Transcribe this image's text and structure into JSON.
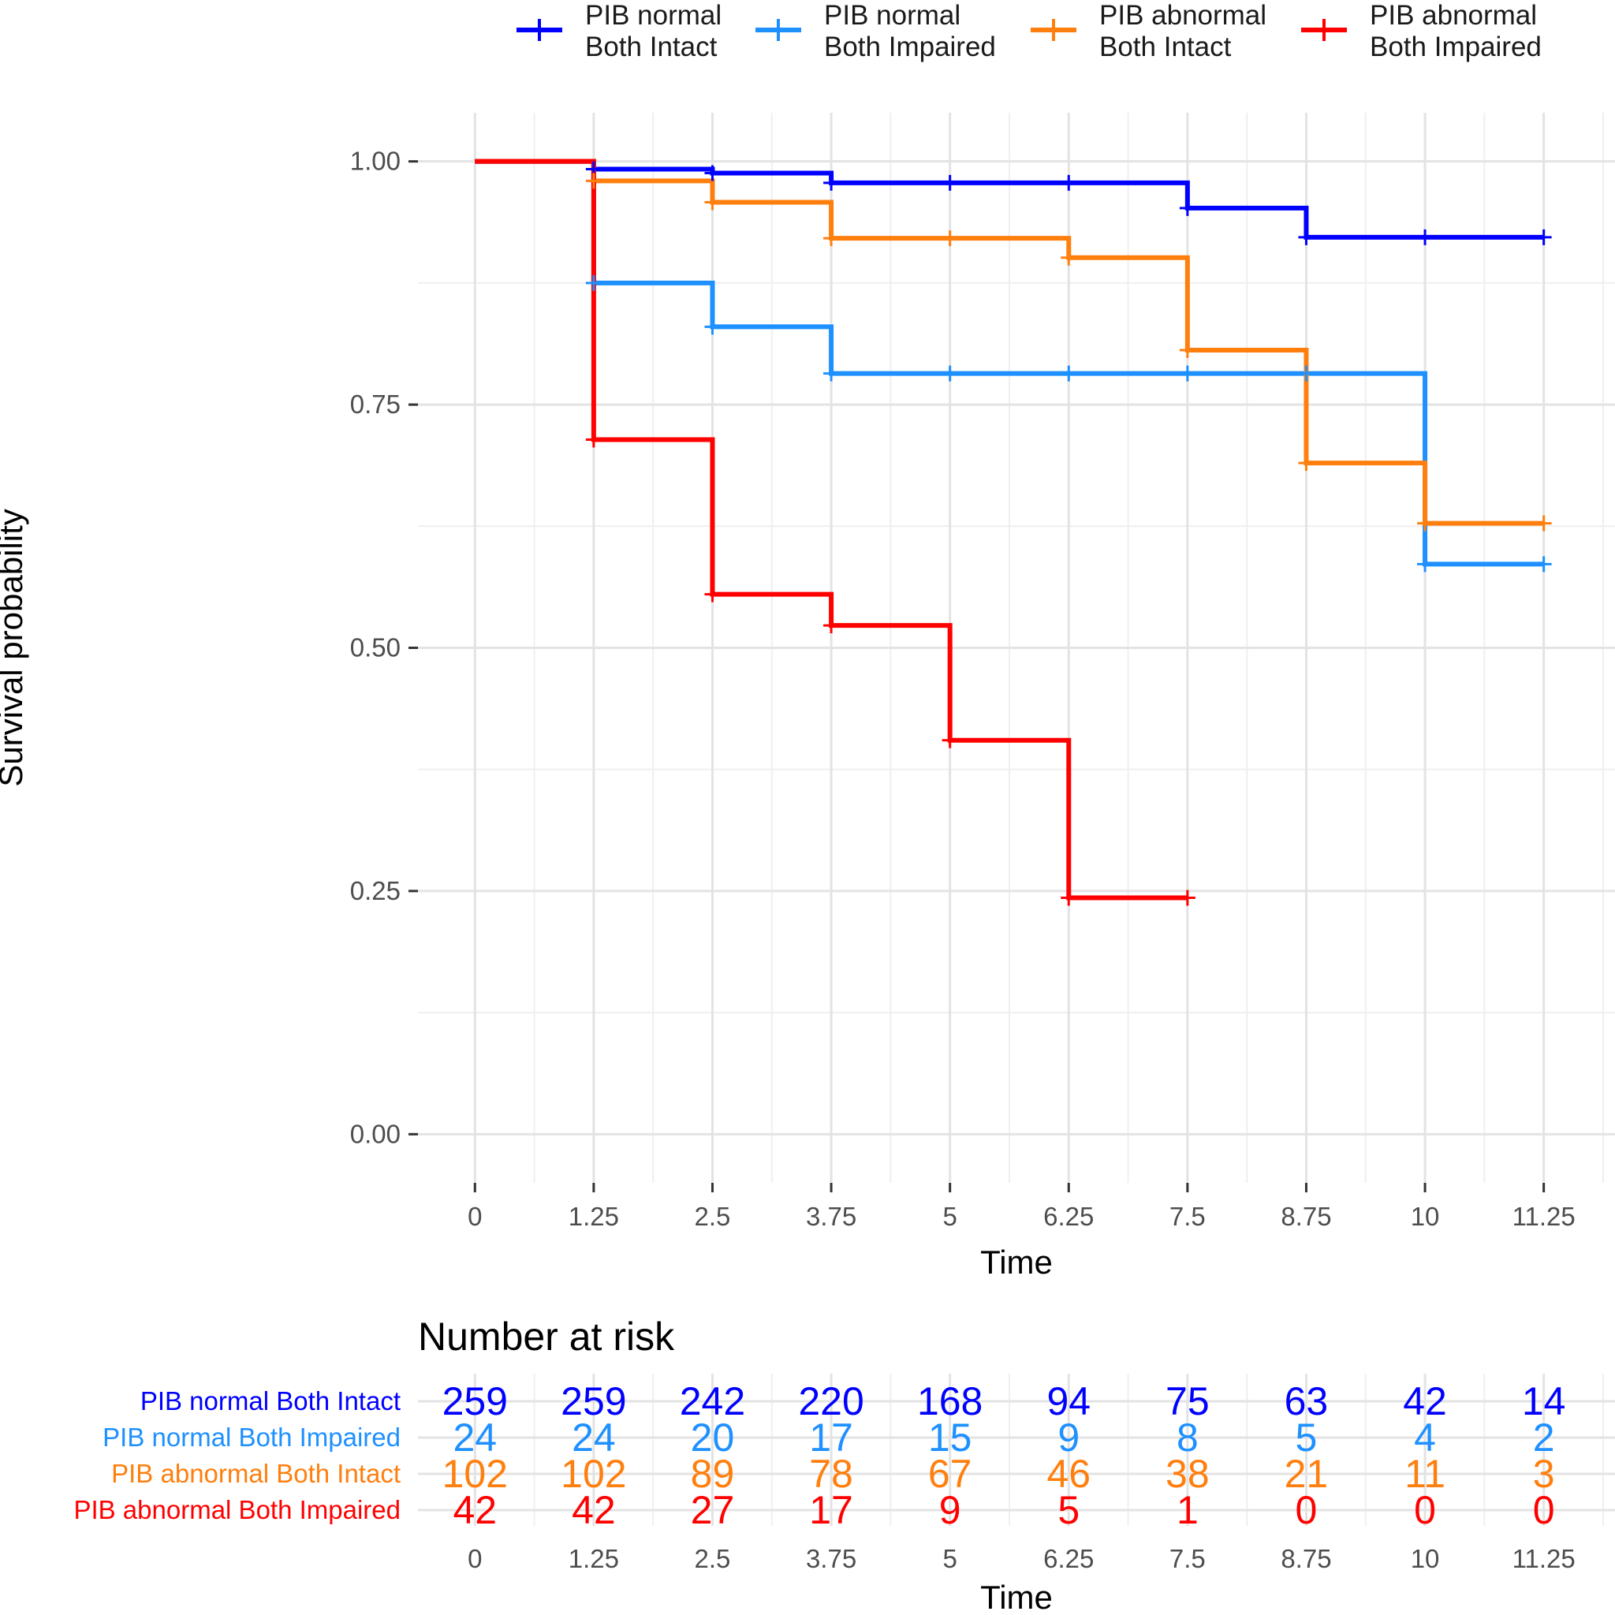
{
  "chart_data": [
    {
      "type": "line",
      "subtype": "kaplan-meier-step",
      "xlabel": "Time",
      "ylabel": "Survival probability",
      "xlim": [
        -0.6,
        12.0
      ],
      "ylim": [
        -0.05,
        1.05
      ],
      "x_ticks": [
        "0",
        "1.25",
        "2.5",
        "3.75",
        "5",
        "6.25",
        "7.5",
        "8.75",
        "10",
        "11.25"
      ],
      "x_tick_values": [
        0,
        1.25,
        2.5,
        3.75,
        5,
        6.25,
        7.5,
        8.75,
        10,
        11.25
      ],
      "y_ticks": [
        "0.00",
        "0.25",
        "0.50",
        "0.75",
        "1.00"
      ],
      "y_tick_values": [
        0,
        0.25,
        0.5,
        0.75,
        1.0
      ],
      "grid": true,
      "legend": "top",
      "series": [
        {
          "name": "PIB normal\nBoth Intact",
          "legend_line1": "PIB normal",
          "legend_line2": "Both Intact",
          "color": "#0000ff",
          "steps": [
            [
              0,
              1.0
            ],
            [
              1.25,
              0.992
            ],
            [
              2.5,
              0.988
            ],
            [
              3.75,
              0.978
            ],
            [
              7.5,
              0.952
            ],
            [
              8.75,
              0.922
            ],
            [
              11.25,
              0.922
            ]
          ],
          "censor_x": [
            1.25,
            2.5,
            3.75,
            5,
            6.25,
            7.5,
            8.75,
            10,
            11.25
          ]
        },
        {
          "name": "PIB normal\nBoth Impaired",
          "legend_line1": "PIB normal",
          "legend_line2": "Both Impaired",
          "color": "#1e90ff",
          "steps": [
            [
              0,
              1.0
            ],
            [
              1.25,
              0.875
            ],
            [
              2.5,
              0.83
            ],
            [
              3.75,
              0.782
            ],
            [
              10,
              0.586
            ],
            [
              11.25,
              0.586
            ]
          ],
          "censor_x": [
            1.25,
            2.5,
            3.75,
            5,
            6.25,
            7.5,
            8.75,
            10,
            11.25
          ]
        },
        {
          "name": "PIB abnormal\nBoth Intact",
          "legend_line1": "PIB abnormal",
          "legend_line2": "Both Intact",
          "color": "#ff7f0e",
          "steps": [
            [
              0,
              1.0
            ],
            [
              1.25,
              0.98
            ],
            [
              2.5,
              0.958
            ],
            [
              3.75,
              0.921
            ],
            [
              6.25,
              0.901
            ],
            [
              7.5,
              0.806
            ],
            [
              8.75,
              0.69
            ],
            [
              10,
              0.628
            ],
            [
              11.25,
              0.628
            ]
          ],
          "censor_x": [
            1.25,
            2.5,
            3.75,
            5,
            6.25,
            7.5,
            8.75,
            10,
            11.25
          ]
        },
        {
          "name": "PIB abnormal\nBoth Impaired",
          "legend_line1": "PIB abnormal",
          "legend_line2": "Both Impaired",
          "color": "#ff0000",
          "steps": [
            [
              0,
              1.0
            ],
            [
              1.25,
              0.714
            ],
            [
              2.5,
              0.555
            ],
            [
              3.75,
              0.523
            ],
            [
              5,
              0.405
            ],
            [
              6.25,
              0.243
            ],
            [
              7.5,
              0.243
            ]
          ],
          "censor_x": [
            1.25,
            2.5,
            3.75,
            5,
            6.25,
            7.5
          ]
        }
      ]
    },
    {
      "type": "table",
      "title": "Number at risk",
      "xlabel": "Time",
      "x_ticks": [
        "0",
        "1.25",
        "2.5",
        "3.75",
        "5",
        "6.25",
        "7.5",
        "8.75",
        "10",
        "11.25"
      ],
      "x_tick_values": [
        0,
        1.25,
        2.5,
        3.75,
        5,
        6.25,
        7.5,
        8.75,
        10,
        11.25
      ],
      "rows": [
        {
          "label": "PIB normal Both Intact",
          "color": "#0000ff",
          "values": [
            "259",
            "259",
            "242",
            "220",
            "168",
            "94",
            "75",
            "63",
            "42",
            "14"
          ]
        },
        {
          "label": "PIB normal Both Impaired",
          "color": "#1e90ff",
          "values": [
            "24",
            "24",
            "20",
            "17",
            "15",
            "9",
            "8",
            "5",
            "4",
            "2"
          ]
        },
        {
          "label": "PIB abnormal Both Intact",
          "color": "#ff7f0e",
          "values": [
            "102",
            "102",
            "89",
            "78",
            "67",
            "46",
            "38",
            "21",
            "11",
            "3"
          ]
        },
        {
          "label": "PIB abnormal Both Impaired",
          "color": "#ff0000",
          "values": [
            "42",
            "42",
            "27",
            "17",
            "9",
            "5",
            "1",
            "0",
            "0",
            "0"
          ]
        }
      ]
    }
  ]
}
